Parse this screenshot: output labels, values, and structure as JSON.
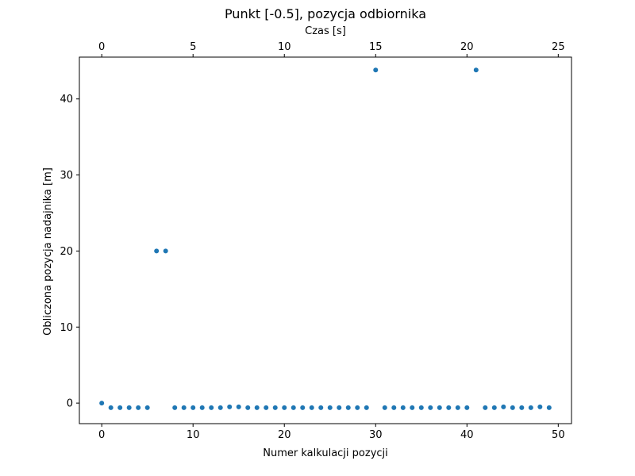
{
  "chart_data": {
    "type": "scatter",
    "title": "Punkt [-0.5], pozycja odbiornika",
    "xlabel": "Numer kalkulacji pozycji",
    "ylabel": "Obliczona pozycja nadajnika [m]",
    "x2label": "Czas [s]",
    "xlim": [
      -2.45,
      51.45
    ],
    "ylim": [
      -2.7,
      45.5
    ],
    "x2lim": [
      -1.225,
      25.725
    ],
    "xticks": [
      0,
      10,
      20,
      30,
      40,
      50
    ],
    "yticks": [
      0,
      10,
      20,
      30,
      40
    ],
    "x2ticks": [
      0,
      5,
      10,
      15,
      20,
      25
    ],
    "grid": false,
    "marker_color": "#1f77b4",
    "series": [
      {
        "x": [
          0,
          1,
          2,
          3,
          4,
          5,
          6,
          7,
          8,
          9,
          10,
          11,
          12,
          13,
          14,
          15,
          16,
          17,
          18,
          19,
          20,
          21,
          22,
          23,
          24,
          25,
          26,
          27,
          28,
          29,
          30,
          31,
          32,
          33,
          34,
          35,
          36,
          37,
          38,
          39,
          40,
          41,
          42,
          43,
          44,
          45,
          46,
          47,
          48,
          49
        ],
        "y": [
          0.0,
          -0.6,
          -0.6,
          -0.6,
          -0.6,
          -0.6,
          20.0,
          20.0,
          -0.6,
          -0.6,
          -0.6,
          -0.6,
          -0.6,
          -0.6,
          -0.5,
          -0.5,
          -0.6,
          -0.6,
          -0.6,
          -0.6,
          -0.6,
          -0.6,
          -0.6,
          -0.6,
          -0.6,
          -0.6,
          -0.6,
          -0.6,
          -0.6,
          -0.6,
          43.8,
          -0.6,
          -0.6,
          -0.6,
          -0.6,
          -0.6,
          -0.6,
          -0.6,
          -0.6,
          -0.6,
          -0.6,
          43.8,
          -0.6,
          -0.6,
          -0.5,
          -0.6,
          -0.6,
          -0.6,
          -0.5,
          -0.6
        ]
      }
    ]
  }
}
